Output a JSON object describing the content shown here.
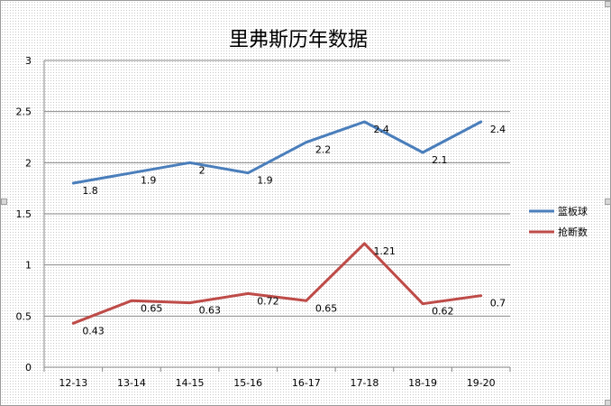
{
  "chart_data": {
    "type": "line",
    "title": "里弗斯历年数据",
    "categories": [
      "12-13",
      "13-14",
      "14-15",
      "15-16",
      "16-17",
      "17-18",
      "18-19",
      "19-20"
    ],
    "series": [
      {
        "name": "篮板球",
        "color": "#4a7ebb",
        "values": [
          1.8,
          1.9,
          2,
          1.9,
          2.2,
          2.4,
          2.1,
          2.4
        ],
        "labels": [
          "1.8",
          "1.9",
          "2",
          "1.9",
          "2.2",
          "2.4",
          "2.1",
          "2.4"
        ]
      },
      {
        "name": "抢断数",
        "color": "#be4b48",
        "values": [
          0.43,
          0.65,
          0.63,
          0.72,
          0.65,
          1.21,
          0.62,
          0.7
        ],
        "labels": [
          "0.43",
          "0.65",
          "0.63",
          "0.72",
          "0.65",
          "1.21",
          "0.62",
          "0.7"
        ]
      }
    ],
    "ylim": [
      0,
      3
    ],
    "yticks": [
      "0",
      "0.5",
      "1",
      "1.5",
      "2",
      "2.5",
      "3"
    ],
    "grid": true,
    "legend_position": "right"
  }
}
